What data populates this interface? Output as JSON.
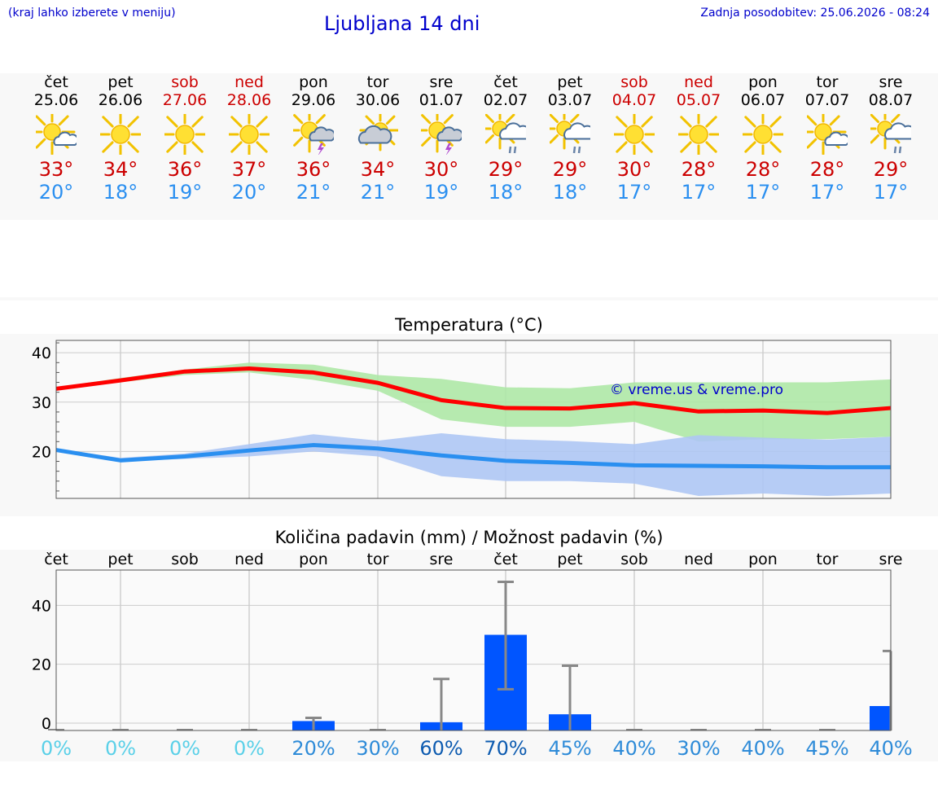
{
  "header": {
    "hint": "(kraj lahko izberete v meniju)",
    "title": "Ljubljana 14 dni",
    "updated": "Zadnja posodobitev: 25.06.2026 - 08:24"
  },
  "days": [
    {
      "name": "čet",
      "date": "25.06",
      "weekend": false,
      "icon": "sun-cloud-icon",
      "tmax": "33°",
      "tmin": "20°"
    },
    {
      "name": "pet",
      "date": "26.06",
      "weekend": false,
      "icon": "sun-icon",
      "tmax": "34°",
      "tmin": "18°"
    },
    {
      "name": "sob",
      "date": "27.06",
      "weekend": true,
      "icon": "sun-icon",
      "tmax": "36°",
      "tmin": "19°"
    },
    {
      "name": "ned",
      "date": "28.06",
      "weekend": true,
      "icon": "sun-icon",
      "tmax": "37°",
      "tmin": "20°"
    },
    {
      "name": "pon",
      "date": "29.06",
      "weekend": false,
      "icon": "sun-cloud-thunder-icon",
      "tmax": "36°",
      "tmin": "21°"
    },
    {
      "name": "tor",
      "date": "30.06",
      "weekend": false,
      "icon": "sun-overcast-icon",
      "tmax": "34°",
      "tmin": "21°"
    },
    {
      "name": "sre",
      "date": "01.07",
      "weekend": false,
      "icon": "sun-cloud-thunder-icon",
      "tmax": "30°",
      "tmin": "19°"
    },
    {
      "name": "čet",
      "date": "02.07",
      "weekend": false,
      "icon": "sun-cloud-rain-icon",
      "tmax": "29°",
      "tmin": "18°"
    },
    {
      "name": "pet",
      "date": "03.07",
      "weekend": false,
      "icon": "sun-cloud-rain-icon",
      "tmax": "29°",
      "tmin": "18°"
    },
    {
      "name": "sob",
      "date": "04.07",
      "weekend": true,
      "icon": "sun-icon",
      "tmax": "30°",
      "tmin": "17°"
    },
    {
      "name": "ned",
      "date": "05.07",
      "weekend": true,
      "icon": "sun-icon",
      "tmax": "28°",
      "tmin": "17°"
    },
    {
      "name": "pon",
      "date": "06.07",
      "weekend": false,
      "icon": "sun-icon",
      "tmax": "28°",
      "tmin": "17°"
    },
    {
      "name": "tor",
      "date": "07.07",
      "weekend": false,
      "icon": "sun-cloud-icon",
      "tmax": "28°",
      "tmin": "17°"
    },
    {
      "name": "sre",
      "date": "08.07",
      "weekend": false,
      "icon": "sun-cloud-rain-icon",
      "tmax": "29°",
      "tmin": "17°"
    }
  ],
  "colors": {
    "max_line": "#ff0000",
    "max_band": "#aee8a6",
    "min_line": "#2a8ff0",
    "min_band": "#aec6f4",
    "bar": "#0055ff",
    "error_bar": "#888888",
    "link": "#0000cc"
  },
  "chart_data": [
    {
      "type": "line",
      "title": "Temperatura (°C)",
      "watermark": "© vreme.us & vreme.pro",
      "x": [
        "čet",
        "pet",
        "sob",
        "ned",
        "pon",
        "tor",
        "sre",
        "čet",
        "pet",
        "sob",
        "ned",
        "pon",
        "tor",
        "sre"
      ],
      "ylim": [
        10.5,
        42.5
      ],
      "yticks": [
        20,
        30,
        40
      ],
      "grid": true,
      "series": [
        {
          "values": [
            32.7,
            34.4,
            36.2,
            36.8,
            36.0,
            33.9,
            30.4,
            28.8,
            28.7,
            29.8,
            28.1,
            28.3,
            27.8,
            28.8
          ],
          "band_low": [
            32.6,
            34.0,
            35.5,
            36.0,
            34.5,
            32.3,
            26.5,
            25.0,
            25.0,
            26.0,
            22.0,
            22.5,
            22.5,
            23.0
          ],
          "band_high": [
            33.0,
            34.9,
            36.6,
            38.0,
            37.6,
            35.5,
            34.7,
            33.0,
            32.8,
            34.0,
            34.0,
            34.0,
            34.0,
            34.6
          ]
        },
        {
          "values": [
            20.3,
            18.2,
            19.0,
            20.2,
            21.3,
            20.6,
            19.2,
            18.1,
            17.7,
            17.2,
            17.1,
            17.0,
            16.8,
            16.8
          ],
          "band_low": [
            20.0,
            18.0,
            18.5,
            19.0,
            20.0,
            19.0,
            15.0,
            14.0,
            14.0,
            13.5,
            11.0,
            11.5,
            11.0,
            11.5
          ],
          "band_high": [
            20.6,
            18.7,
            19.6,
            21.5,
            23.5,
            22.2,
            23.7,
            22.5,
            22.1,
            21.5,
            23.3,
            22.8,
            22.4,
            23.0
          ]
        }
      ]
    },
    {
      "type": "bar",
      "title": "Količina padavin (mm) / Možnost padavin (%)",
      "categories": [
        "čet",
        "pet",
        "sob",
        "ned",
        "pon",
        "tor",
        "sre",
        "čet",
        "pet",
        "sob",
        "ned",
        "pon",
        "tor",
        "sre"
      ],
      "values": [
        0,
        0,
        0,
        0,
        0.7,
        0,
        0.3,
        30,
        3,
        0,
        0,
        0,
        0,
        5.8
      ],
      "error_high": [
        0,
        0,
        0,
        0,
        1.8,
        0,
        15,
        48,
        19.5,
        0,
        0,
        0,
        0,
        24.5
      ],
      "error_low": [
        0,
        0,
        0,
        0,
        0,
        0,
        0,
        11.5,
        0,
        0,
        0,
        0,
        0,
        0
      ],
      "probability": [
        "0%",
        "0%",
        "0%",
        "0%",
        "20%",
        "30%",
        "60%",
        "70%",
        "45%",
        "40%",
        "30%",
        "40%",
        "45%",
        "40%"
      ],
      "probability_colors": [
        "#5ad0e8",
        "#5ad0e8",
        "#5ad0e8",
        "#5ad0e8",
        "#2e8bd8",
        "#2e8bd8",
        "#0d5bb0",
        "#0d5bb0",
        "#2e8bd8",
        "#2e8bd8",
        "#2e8bd8",
        "#2e8bd8",
        "#2e8bd8",
        "#2e8bd8"
      ],
      "ylim": [
        -2.5,
        52
      ],
      "yticks": [
        0,
        20,
        40
      ],
      "grid": true
    }
  ]
}
